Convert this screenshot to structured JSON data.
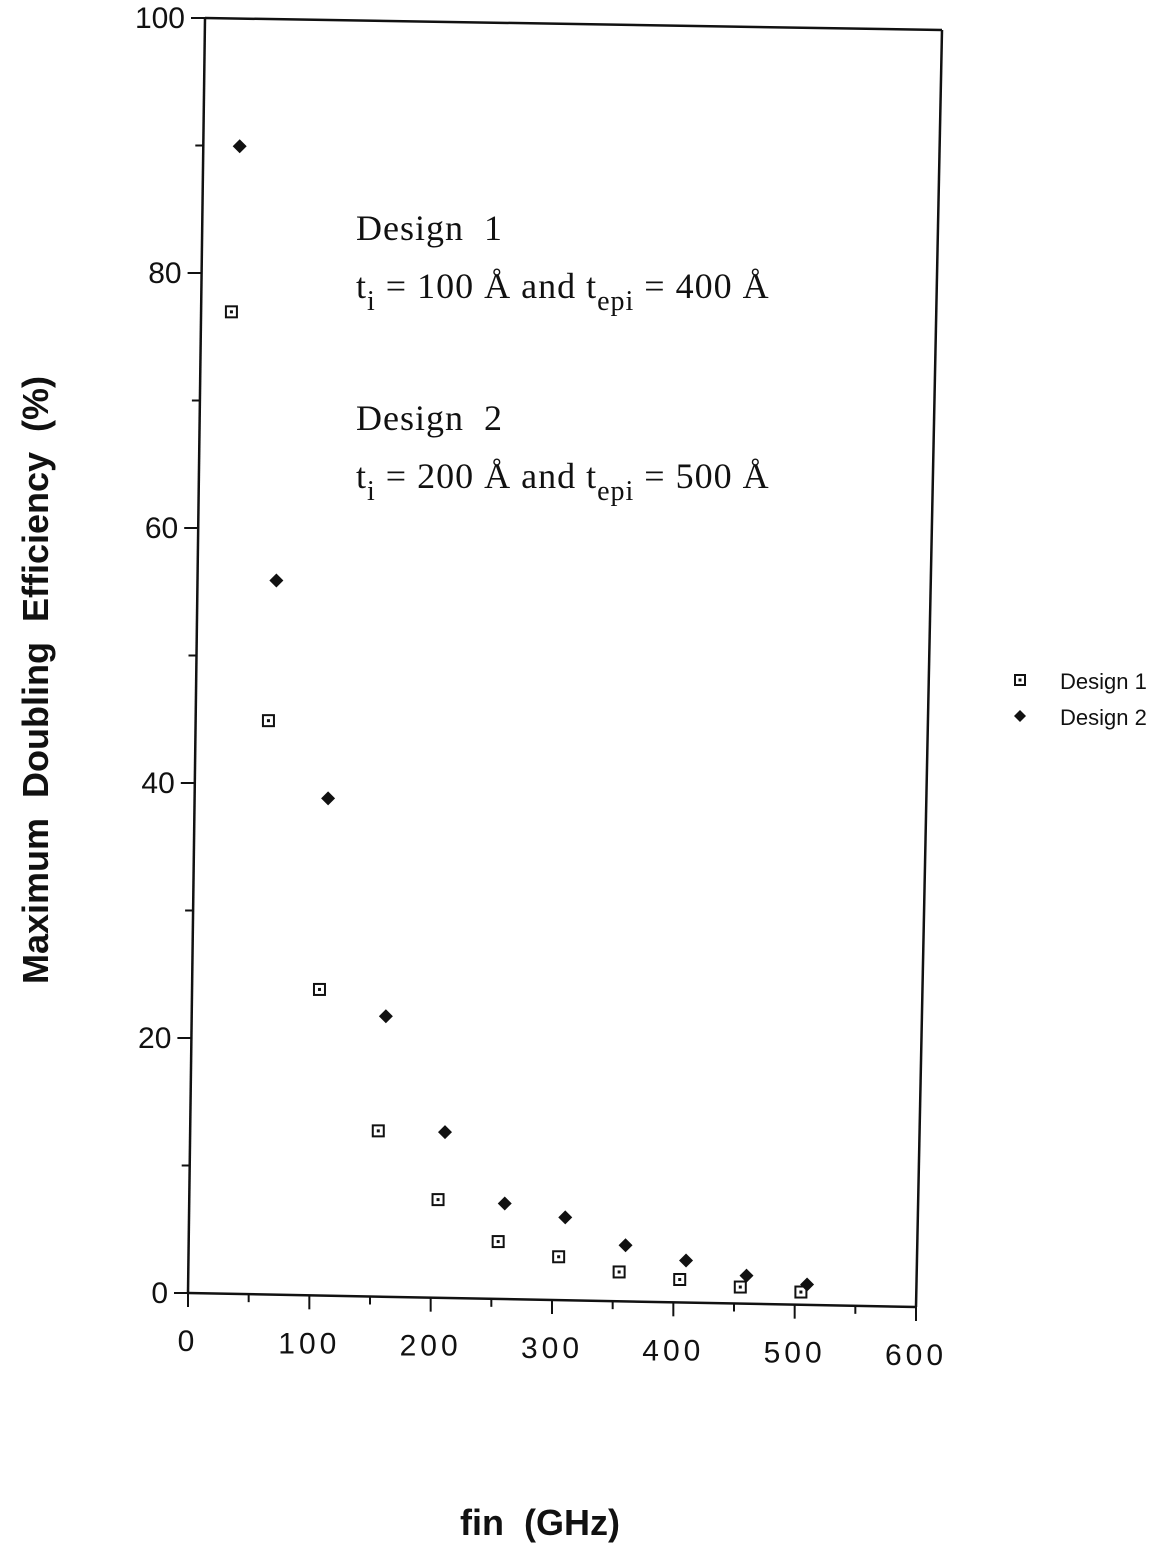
{
  "chart_data": {
    "type": "scatter",
    "title": "",
    "xlabel": "fin  (GHz)",
    "ylabel": "Maximum  Doubling  Efficiency  (%)",
    "xlim": [
      0,
      600
    ],
    "ylim": [
      0,
      100
    ],
    "x_ticks": [
      0,
      100,
      200,
      300,
      400,
      500,
      600
    ],
    "y_ticks": [
      0,
      20,
      40,
      60,
      80,
      100
    ],
    "grid": false,
    "legend_position": "right",
    "series": [
      {
        "name": "Design 1",
        "marker": "square-dot",
        "color": "#111111",
        "x": [
          25,
          60,
          105,
          155,
          205,
          255,
          305,
          355,
          405,
          455,
          505
        ],
        "y": [
          77,
          45,
          24,
          13,
          7.7,
          4.5,
          3.4,
          2.3,
          1.8,
          1.3,
          1.0
        ]
      },
      {
        "name": "Design 2",
        "marker": "diamond",
        "color": "#111111",
        "x": [
          30,
          65,
          110,
          160,
          210,
          260,
          310,
          360,
          410,
          460,
          510
        ],
        "y": [
          90,
          56,
          39,
          22,
          13,
          7.5,
          6.5,
          4.4,
          3.3,
          2.2,
          1.6
        ]
      }
    ],
    "annotations": {
      "design1_title": "Design  1",
      "design1_desc": {
        "t": "t",
        "sub1": "i",
        "mid": " = 100 Å and t",
        "sub2": "epi",
        "end": " = 400 Å"
      },
      "design2_title": "Design  2",
      "design2_desc": {
        "t": "t",
        "sub1": "i",
        "mid": " = 200 Å and t",
        "sub2": "epi",
        "end": " = 500 Å"
      }
    }
  }
}
